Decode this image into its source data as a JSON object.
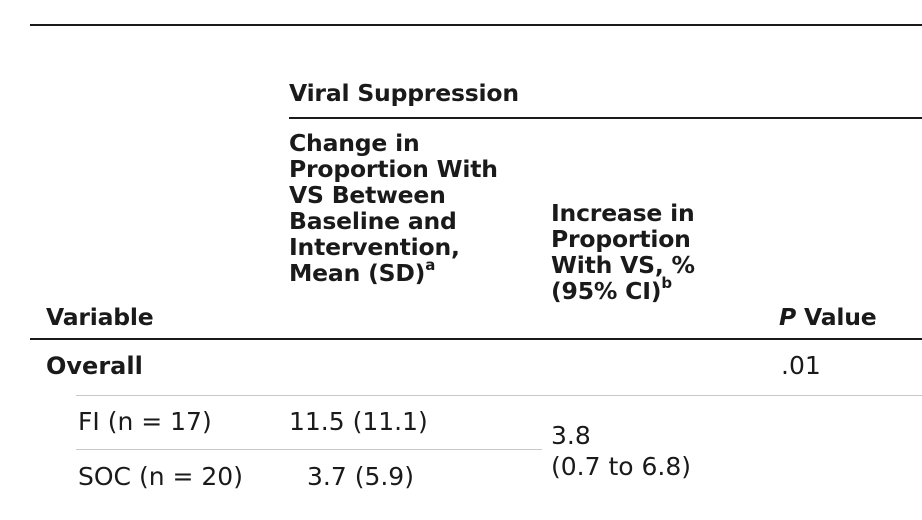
{
  "table": {
    "header": {
      "variable": "Variable",
      "group_label": "Viral Suppression",
      "change_col": {
        "lines": [
          "Change in",
          "Proportion With",
          "VS Between",
          "Baseline and",
          "Intervention,"
        ],
        "last_line": "Mean (SD)",
        "footnote": "a"
      },
      "increase_col": {
        "lines": [
          "Increase in",
          "Proportion",
          "With VS, %"
        ],
        "last_line": "(95% CI)",
        "footnote": "b"
      },
      "pvalue_col": {
        "italic_part": "P",
        "rest": " Value"
      }
    },
    "rows": {
      "overall": {
        "label": "Overall",
        "p_value": ".01"
      },
      "fi": {
        "label": "FI (n = 17)",
        "change": "11.5 (11.1)"
      },
      "soc": {
        "label": "SOC (n = 20)",
        "change": "3.7 (5.9)"
      },
      "increase": {
        "value": "3.8",
        "ci": "(0.7 to 6.8)"
      }
    }
  }
}
